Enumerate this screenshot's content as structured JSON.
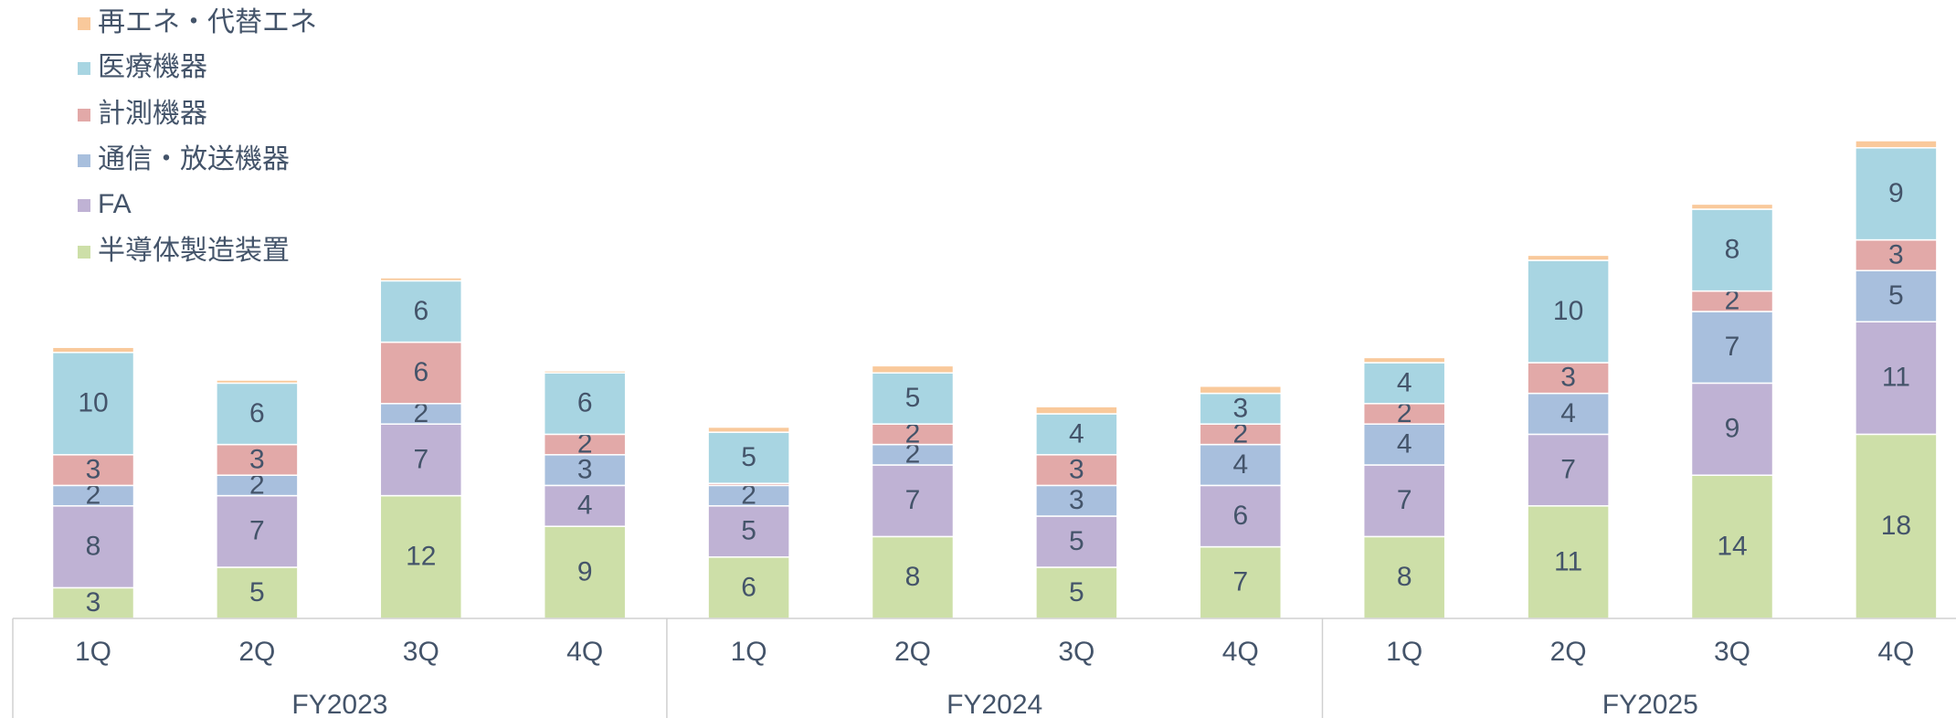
{
  "chart_data": {
    "type": "bar",
    "stacked": true,
    "categories": [
      "1Q",
      "2Q",
      "3Q",
      "4Q",
      "1Q",
      "2Q",
      "3Q",
      "4Q",
      "1Q",
      "2Q",
      "3Q",
      "4Q"
    ],
    "groups": [
      {
        "label": "FY2023",
        "size": 4
      },
      {
        "label": "FY2024",
        "size": 4
      },
      {
        "label": "FY2025",
        "size": 4
      }
    ],
    "legend": "upper left",
    "series": [
      {
        "name": "半導体製造装置",
        "color": "#cddfa8",
        "values": [
          3,
          5,
          12,
          9,
          6,
          8,
          5,
          7,
          8,
          11,
          14,
          18
        ]
      },
      {
        "name": "FA",
        "color": "#bfb2d4",
        "values": [
          8,
          7,
          7,
          4,
          5,
          7,
          5,
          6,
          7,
          7,
          9,
          11
        ]
      },
      {
        "name": "通信・放送機器",
        "color": "#a8bfdd",
        "values": [
          2,
          2,
          2,
          3,
          2,
          2,
          3,
          4,
          4,
          4,
          7,
          5
        ]
      },
      {
        "name": "計測機器",
        "color": "#e2a9a8",
        "values": [
          3,
          3,
          6,
          2,
          0.2,
          2,
          3,
          2,
          2,
          3,
          2,
          3
        ]
      },
      {
        "name": "医療機器",
        "color": "#a8d5e2",
        "values": [
          10,
          6,
          6,
          6,
          5,
          5,
          4,
          3,
          4,
          10,
          8,
          9
        ]
      },
      {
        "name": "再エネ・代替エネ",
        "color": "#f9c99b",
        "values": [
          0.5,
          0.3,
          0.3,
          0.2,
          0.5,
          0.7,
          0.7,
          0.7,
          0.5,
          0.5,
          0.5,
          0.7
        ]
      }
    ]
  }
}
